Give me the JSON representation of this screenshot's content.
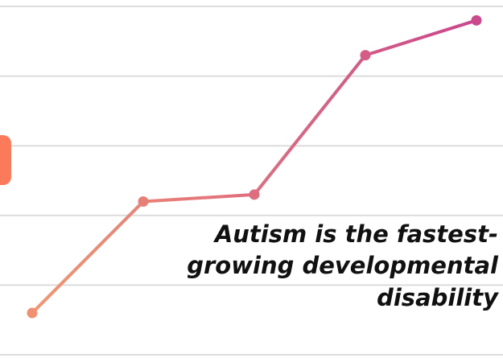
{
  "chart_data": {
    "type": "line",
    "title": "",
    "xlabel": "",
    "ylabel": "",
    "x": [
      1,
      2,
      3,
      4,
      5
    ],
    "series": [
      {
        "values": [
          0.6,
          2.2,
          2.3,
          4.3,
          4.8
        ]
      }
    ],
    "ylim": [
      0,
      5
    ],
    "grid": true,
    "legend": "none"
  },
  "annotation": {
    "lines": [
      "Autism is the fastest-",
      "growing developmental",
      "disability"
    ]
  },
  "colors": {
    "line_start": "#f4956e",
    "line_end": "#c9468e",
    "grid": "#dcdcdc",
    "accent": "#fb7a5a",
    "text": "#111111"
  }
}
